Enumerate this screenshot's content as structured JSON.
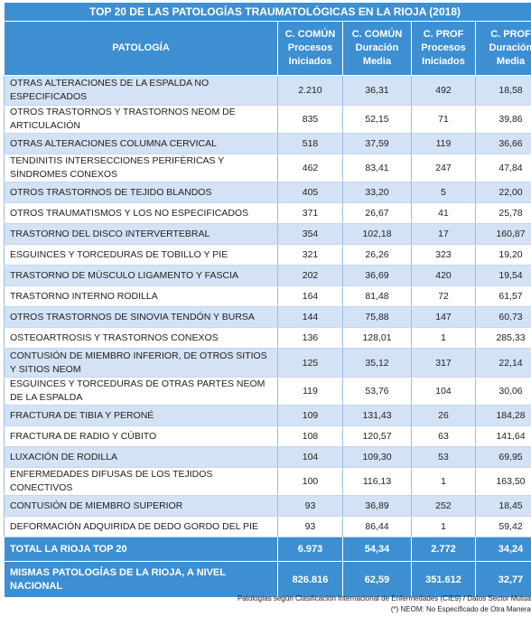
{
  "title": "TOP 20 DE LAS PATOLOGÍAS TRAUMATOLÓGICAS EN LA RIOJA (2018)",
  "headers": {
    "pathology": "PATOLOGÍA",
    "col1": [
      "C. COMÚN",
      "Procesos",
      "Iniciados"
    ],
    "col2": [
      "C. COMÚN",
      "Duración",
      "Media"
    ],
    "col3": [
      "C. PROF",
      "Procesos",
      "Iniciados"
    ],
    "col4": [
      "C. PROF",
      "Duración",
      "Media"
    ]
  },
  "rows": [
    {
      "name": "OTRAS ALTERACIONES DE LA ESPALDA NO ESPECIFICADOS",
      "cc_procesos": "2.210",
      "cc_duracion": "36,31",
      "cp_procesos": "492",
      "cp_duracion": "18,58"
    },
    {
      "name": "OTROS TRASTORNOS Y TRASTORNOS NEOM DE ARTICULACIÓN",
      "cc_procesos": "835",
      "cc_duracion": "52,15",
      "cp_procesos": "71",
      "cp_duracion": "39,86"
    },
    {
      "name": "OTRAS ALTERACIONES COLUMNA CERVICAL",
      "cc_procesos": "518",
      "cc_duracion": "37,59",
      "cp_procesos": "119",
      "cp_duracion": "36,66"
    },
    {
      "name": "TENDINITIS INTERSECCIONES PERIFÉRICAS Y SÍNDROMES CONEXOS",
      "cc_procesos": "462",
      "cc_duracion": "83,41",
      "cp_procesos": "247",
      "cp_duracion": "47,84"
    },
    {
      "name": "OTROS TRASTORNOS DE TEJIDO BLANDOS",
      "cc_procesos": "405",
      "cc_duracion": "33,20",
      "cp_procesos": "5",
      "cp_duracion": "22,00"
    },
    {
      "name": "OTROS TRAUMATISMOS Y LOS NO ESPECIFICADOS",
      "cc_procesos": "371",
      "cc_duracion": "26,67",
      "cp_procesos": "41",
      "cp_duracion": "25,78"
    },
    {
      "name": "TRASTORNO DEL DISCO INTERVERTEBRAL",
      "cc_procesos": "354",
      "cc_duracion": "102,18",
      "cp_procesos": "17",
      "cp_duracion": "160,87"
    },
    {
      "name": "ESGUINCES Y TORCEDURAS DE TOBILLO Y PIE",
      "cc_procesos": "321",
      "cc_duracion": "26,26",
      "cp_procesos": "323",
      "cp_duracion": "19,20"
    },
    {
      "name": "TRASTORNO DE MÚSCULO LIGAMENTO Y FASCIA",
      "cc_procesos": "202",
      "cc_duracion": "36,69",
      "cp_procesos": "420",
      "cp_duracion": "19,54"
    },
    {
      "name": "TRASTORNO INTERNO RODILLA",
      "cc_procesos": "164",
      "cc_duracion": "81,48",
      "cp_procesos": "72",
      "cp_duracion": "61,57"
    },
    {
      "name": "OTROS TRASTORNOS DE SINOVIA TENDÓN Y BURSA",
      "cc_procesos": "144",
      "cc_duracion": "75,88",
      "cp_procesos": "147",
      "cp_duracion": "60,73"
    },
    {
      "name": "OSTEOARTROSIS Y TRASTORNOS CONEXOS",
      "cc_procesos": "136",
      "cc_duracion": "128,01",
      "cp_procesos": "1",
      "cp_duracion": "285,33"
    },
    {
      "name": "CONTUSIÓN DE MIEMBRO INFERIOR, DE OTROS SITIOS Y SITIOS NEOM",
      "cc_procesos": "125",
      "cc_duracion": "35,12",
      "cp_procesos": "317",
      "cp_duracion": "22,14"
    },
    {
      "name": "ESGUINCES Y TORCEDURAS DE OTRAS PARTES NEOM DE LA ESPALDA",
      "cc_procesos": "119",
      "cc_duracion": "53,76",
      "cp_procesos": "104",
      "cp_duracion": "30,06"
    },
    {
      "name": "FRACTURA DE TIBIA Y PERONÉ",
      "cc_procesos": "109",
      "cc_duracion": "131,43",
      "cp_procesos": "26",
      "cp_duracion": "184,28"
    },
    {
      "name": "FRACTURA DE RADIO Y CÚBITO",
      "cc_procesos": "108",
      "cc_duracion": "120,57",
      "cp_procesos": "63",
      "cp_duracion": "141,64"
    },
    {
      "name": "LUXACIÓN DE RODILLA",
      "cc_procesos": "104",
      "cc_duracion": "109,30",
      "cp_procesos": "53",
      "cp_duracion": "69,95"
    },
    {
      "name": "ENFERMEDADES DIFUSAS DE LOS TEJIDOS CONECTIVOS",
      "cc_procesos": "100",
      "cc_duracion": "116,13",
      "cp_procesos": "1",
      "cp_duracion": "163,50"
    },
    {
      "name": "CONTUSIÓN DE MIEMBRO SUPERIOR",
      "cc_procesos": "93",
      "cc_duracion": "36,89",
      "cp_procesos": "252",
      "cp_duracion": "18,45"
    },
    {
      "name": "DEFORMACIÓN ADQUIRIDA DE DEDO GORDO DEL PIE",
      "cc_procesos": "93",
      "cc_duracion": "86,44",
      "cp_procesos": "1",
      "cp_duracion": "59,42"
    }
  ],
  "totals": [
    {
      "name": "TOTAL LA RIOJA TOP 20",
      "cc_procesos": "6.973",
      "cc_duracion": "54,34",
      "cp_procesos": "2.772",
      "cp_duracion": "34,24"
    },
    {
      "name": "MISMAS PATOLOGÍAS DE LA RIOJA, A NIVEL NACIONAL",
      "cc_procesos": "826.816",
      "cc_duracion": "62,59",
      "cp_procesos": "351.612",
      "cp_duracion": "32,77"
    }
  ],
  "footnotes": [
    "Patologías según Clasificación Internacional de Enfermedades (CIE9) / Datos Sector Mutua",
    "(*) NEOM: No Especificado de Otra Manera"
  ],
  "colors": {
    "header_blue": "#3d8fd1",
    "stripe_blue": "#d3e2f4",
    "text": "#1f1f1f"
  }
}
